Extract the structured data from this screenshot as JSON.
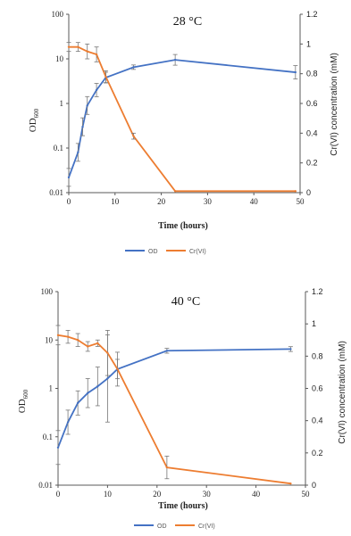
{
  "chart_data": [
    {
      "type": "line",
      "title": "28 °C",
      "xlabel": "Time (hours)",
      "ylabel_left": "OD",
      "ylabel_left_sub": "600",
      "ylabel_right": "Cr(VI) concentration  (mM)",
      "xlim": [
        0,
        50
      ],
      "x_ticks": [
        0,
        10,
        20,
        30,
        40,
        50
      ],
      "y_left_scale": "log",
      "y_left_ticks": [
        0.01,
        0.1,
        1,
        10,
        100
      ],
      "y_left_tick_labels": [
        "0.01",
        "0.1",
        "1",
        "10",
        "100"
      ],
      "y_right_ticks": [
        0,
        0.2,
        0.4,
        0.6,
        0.8,
        1,
        1.2
      ],
      "y_right_tick_labels": [
        "0",
        "0.2",
        "0.4",
        "0.6",
        "0.8",
        "1",
        "1.2"
      ],
      "legend_position": "bottom",
      "series": [
        {
          "name": "OD",
          "axis": "left",
          "color": "#4472c4",
          "x": [
            0,
            2,
            3,
            4,
            6,
            8,
            14,
            23,
            49
          ],
          "y": [
            0.022,
            0.08,
            0.3,
            0.9,
            2.0,
            3.8,
            6.5,
            9.5,
            5.0
          ],
          "err": [
            0.2,
            0.2,
            0.2,
            0.2,
            0.15,
            0.12,
            0.05,
            0.12,
            0.15
          ]
        },
        {
          "name": "Cr(VI)",
          "axis": "right",
          "color": "#ed7d31",
          "x": [
            0,
            2,
            4,
            6,
            8,
            14,
            23,
            49
          ],
          "y": [
            0.98,
            0.98,
            0.95,
            0.93,
            0.78,
            0.38,
            0.01,
            0.01
          ],
          "err": [
            0.03,
            0.03,
            0.05,
            0.05,
            0.04,
            0.02,
            0,
            0
          ]
        }
      ]
    },
    {
      "type": "line",
      "title": "40 °C",
      "xlabel": "Time (hours)",
      "ylabel_left": "OD",
      "ylabel_left_sub": "600",
      "ylabel_right": "Cr(VI) concentration  (mM)",
      "xlim": [
        0,
        50
      ],
      "x_ticks": [
        0,
        10,
        20,
        30,
        40,
        50
      ],
      "y_left_scale": "log",
      "y_left_ticks": [
        0.01,
        0.1,
        1,
        10,
        100
      ],
      "y_left_tick_labels": [
        "0.01",
        "0.1",
        "1",
        "10",
        "100"
      ],
      "y_right_ticks": [
        0,
        0.2,
        0.4,
        0.6,
        0.8,
        1,
        1.2
      ],
      "y_right_tick_labels": [
        "0",
        "0.2",
        "0.4",
        "0.6",
        "0.8",
        "1",
        "1.2"
      ],
      "legend_position": "bottom",
      "series": [
        {
          "name": "OD",
          "axis": "left",
          "color": "#4472c4",
          "x": [
            0,
            2,
            4,
            6,
            8,
            10,
            12,
            22,
            47
          ],
          "y": [
            0.06,
            0.2,
            0.5,
            0.8,
            1.1,
            1.6,
            2.5,
            6.0,
            6.5
          ],
          "err": [
            0.35,
            0.25,
            0.25,
            0.3,
            0.4,
            0.9,
            0.35,
            0.05,
            0.05
          ]
        },
        {
          "name": "Cr(VI)",
          "axis": "right",
          "color": "#ed7d31",
          "x": [
            0,
            2,
            4,
            6,
            8,
            10,
            12,
            22,
            47
          ],
          "y": [
            0.93,
            0.92,
            0.9,
            0.86,
            0.88,
            0.82,
            0.72,
            0.11,
            0.01
          ],
          "err": [
            0.06,
            0.04,
            0.04,
            0.03,
            0.02,
            0.14,
            0.06,
            0.07,
            0
          ]
        }
      ]
    }
  ]
}
